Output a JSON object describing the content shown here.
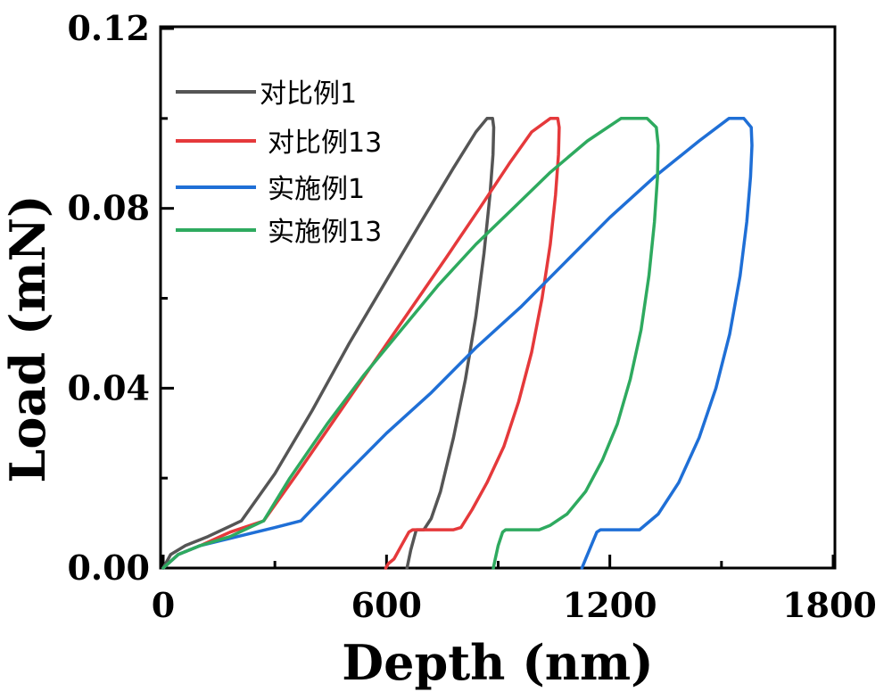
{
  "chart_data": {
    "type": "line",
    "title": "",
    "xlabel": "Depth (nm)",
    "ylabel": "Load (mN)",
    "xlim": [
      0,
      1800
    ],
    "ylim": [
      0,
      0.12
    ],
    "xticks": [
      "0",
      "600",
      "1200",
      "1800"
    ],
    "yticks": [
      "0.00",
      "0.04",
      "0.08",
      "0.12"
    ],
    "grid": false,
    "legend_position": "top-left",
    "series": [
      {
        "name": "对比例1",
        "color": "#555555",
        "x": [
          0,
          20,
          60,
          120,
          210,
          300,
          400,
          500,
          600,
          700,
          780,
          840,
          870,
          885,
          888,
          886,
          878,
          862,
          840,
          812,
          780,
          745,
          720,
          700,
          680,
          665,
          655
        ],
        "y": [
          0,
          0.003,
          0.005,
          0.007,
          0.0105,
          0.021,
          0.035,
          0.05,
          0.064,
          0.078,
          0.089,
          0.097,
          0.1,
          0.1,
          0.098,
          0.092,
          0.083,
          0.07,
          0.056,
          0.042,
          0.029,
          0.017,
          0.011,
          0.0085,
          0.0085,
          0.004,
          0
        ]
      },
      {
        "name": "对比例13",
        "color": "#e5393b",
        "x": [
          0,
          40,
          100,
          180,
          270,
          360,
          460,
          560,
          660,
          760,
          850,
          930,
          990,
          1040,
          1060,
          1064,
          1062,
          1054,
          1040,
          1018,
          990,
          955,
          915,
          870,
          830,
          800,
          780,
          670,
          660,
          640,
          620,
          605,
          598
        ],
        "y": [
          0,
          0.003,
          0.005,
          0.008,
          0.0105,
          0.021,
          0.033,
          0.045,
          0.057,
          0.069,
          0.08,
          0.09,
          0.097,
          0.1,
          0.1,
          0.098,
          0.092,
          0.083,
          0.072,
          0.06,
          0.048,
          0.037,
          0.027,
          0.019,
          0.013,
          0.009,
          0.0085,
          0.0085,
          0.008,
          0.005,
          0.002,
          0.001,
          0
        ]
      },
      {
        "name": "实施例1",
        "color": "#1f6fd6",
        "x": [
          0,
          40,
          100,
          200,
          300,
          370,
          480,
          600,
          720,
          840,
          960,
          1080,
          1200,
          1320,
          1440,
          1520,
          1560,
          1580,
          1582,
          1578,
          1568,
          1550,
          1522,
          1485,
          1440,
          1385,
          1330,
          1280,
          1260,
          1240,
          1175,
          1165,
          1150,
          1135,
          1125
        ],
        "y": [
          0,
          0.003,
          0.005,
          0.007,
          0.009,
          0.0105,
          0.02,
          0.03,
          0.039,
          0.049,
          0.058,
          0.068,
          0.078,
          0.087,
          0.095,
          0.1,
          0.1,
          0.098,
          0.094,
          0.087,
          0.077,
          0.065,
          0.052,
          0.04,
          0.029,
          0.019,
          0.012,
          0.0085,
          0.0085,
          0.0085,
          0.0085,
          0.008,
          0.005,
          0.002,
          0
        ]
      },
      {
        "name": "实施例13",
        "color": "#2eaa5f",
        "x": [
          0,
          40,
          100,
          180,
          270,
          340,
          440,
          540,
          640,
          740,
          840,
          940,
          1040,
          1140,
          1230,
          1270,
          1300,
          1325,
          1330,
          1328,
          1320,
          1305,
          1284,
          1255,
          1220,
          1180,
          1135,
          1085,
          1040,
          1010,
          1000,
          920,
          912,
          900,
          892,
          887
        ],
        "y": [
          0,
          0.003,
          0.005,
          0.007,
          0.0105,
          0.02,
          0.032,
          0.043,
          0.053,
          0.063,
          0.072,
          0.08,
          0.088,
          0.095,
          0.1,
          0.1,
          0.1,
          0.098,
          0.094,
          0.087,
          0.077,
          0.065,
          0.053,
          0.042,
          0.032,
          0.024,
          0.017,
          0.012,
          0.0095,
          0.0085,
          0.0085,
          0.0085,
          0.008,
          0.005,
          0.002,
          0
        ]
      }
    ]
  }
}
